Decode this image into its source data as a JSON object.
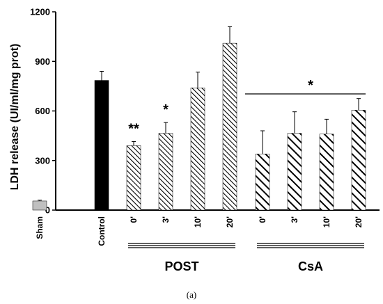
{
  "chart_data": {
    "type": "bar",
    "ylabel": "LDH release (UI/ml/mg prot)",
    "ylim": [
      0,
      1200
    ],
    "yticks": [
      "0",
      "300",
      "600",
      "900",
      "1200"
    ],
    "categories": [
      "Sham",
      "Control",
      "0'",
      "3'",
      "10'",
      "20'",
      "0'",
      "3'",
      "10'",
      "20'"
    ],
    "values": [
      55,
      785,
      390,
      465,
      740,
      1010,
      340,
      465,
      460,
      605
    ],
    "errors": [
      5,
      55,
      25,
      65,
      95,
      100,
      140,
      130,
      90,
      70
    ],
    "fills": [
      "light-gray",
      "solid-black",
      "dense-hatch",
      "dense-hatch",
      "dense-hatch",
      "dense-hatch",
      "bold-hatch",
      "bold-hatch",
      "bold-hatch",
      "bold-hatch"
    ],
    "colors": {
      "sham": "#c0c0c0",
      "control": "#000000",
      "hatch": "#000000"
    },
    "groups": [
      {
        "label": "POST",
        "from": 2,
        "to": 5
      },
      {
        "label": "CsA",
        "from": 6,
        "to": 9
      }
    ],
    "annotations": [
      {
        "text": "**",
        "category_index": 2
      },
      {
        "text": "*",
        "category_index": 3
      },
      {
        "text": "*",
        "from": 6,
        "to": 9
      }
    ],
    "grid": false,
    "legend": "none"
  },
  "caption": "(a)"
}
